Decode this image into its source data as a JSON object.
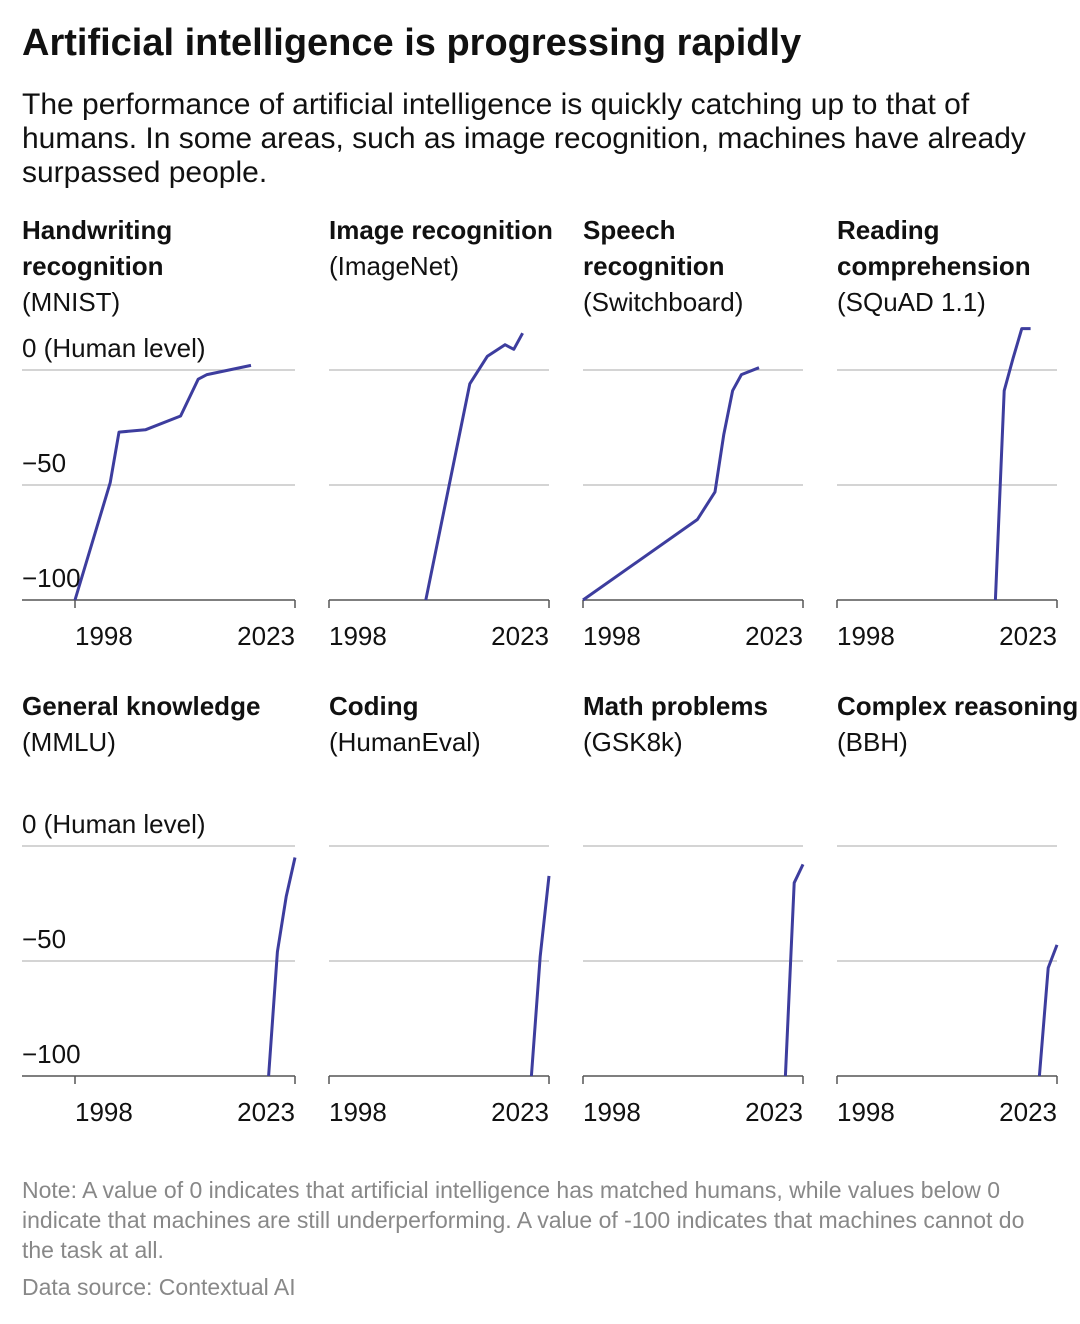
{
  "title": "Artificial intelligence is progressing rapidly",
  "subtitle": "The performance of artificial intelligence is quickly catching up to that of humans. In some areas, such as image recognition, machines have already surpassed people.",
  "note": "Note: A value of 0 indicates that artificial intelligence has matched humans, while values below 0 indicate that machines are still underperforming. A value of -100 indicates that machines cannot do the task at all.",
  "source": "Data source: Contextual AI",
  "chart_data": [
    {
      "type": "line",
      "title": "Handwriting recognition",
      "subtitle": "(MNIST)",
      "color": "#3d3d9e",
      "x": [
        1998,
        2002,
        2003,
        2006,
        2010,
        2012,
        2013,
        2018
      ],
      "values": [
        -100,
        -49,
        -27,
        -26,
        -20,
        -4,
        -2,
        2
      ],
      "xlim": [
        1998,
        2023
      ],
      "xticks": [
        1998,
        2023
      ],
      "ylim": [
        -100,
        20
      ],
      "yticks": [
        {
          "value": -100,
          "label": "−100"
        },
        {
          "value": -50,
          "label": "−50"
        },
        {
          "value": 0,
          "label": "0 (Human level)"
        }
      ]
    },
    {
      "type": "line",
      "title": "Image recognition",
      "subtitle": "(ImageNet)",
      "color": "#3d3d9e",
      "x": [
        2009,
        2014,
        2016,
        2018,
        2019,
        2020
      ],
      "values": [
        -100,
        -6,
        6,
        11,
        9,
        16
      ],
      "xlim": [
        1998,
        2023
      ],
      "xticks": [
        1998,
        2023
      ],
      "ylim": [
        -100,
        20
      ],
      "yticks": [
        -100,
        -50,
        0
      ]
    },
    {
      "type": "line",
      "title": "Speech recognition",
      "subtitle": "(Switchboard)",
      "color": "#3d3d9e",
      "x": [
        1998,
        2011,
        2013,
        2014,
        2015,
        2016,
        2018
      ],
      "values": [
        -100,
        -65,
        -53,
        -28,
        -9,
        -2,
        1
      ],
      "xlim": [
        1998,
        2023
      ],
      "xticks": [
        1998,
        2023
      ],
      "ylim": [
        -100,
        20
      ],
      "yticks": [
        -100,
        -50,
        0
      ]
    },
    {
      "type": "line",
      "title": "Reading comprehension",
      "subtitle": "(SQuAD 1.1)",
      "color": "#3d3d9e",
      "x": [
        2016,
        2017,
        2018,
        2019,
        2020
      ],
      "values": [
        -100,
        -9,
        5,
        18,
        18
      ],
      "xlim": [
        1998,
        2023
      ],
      "xticks": [
        1998,
        2023
      ],
      "ylim": [
        -100,
        20
      ],
      "yticks": [
        -100,
        -50,
        0
      ]
    },
    {
      "type": "line",
      "title": "General knowledge",
      "subtitle": "(MMLU)",
      "color": "#3d3d9e",
      "x": [
        2020,
        2021,
        2022,
        2023
      ],
      "values": [
        -100,
        -46,
        -22,
        -5
      ],
      "xlim": [
        1998,
        2023
      ],
      "xticks": [
        1998,
        2023
      ],
      "ylim": [
        -100,
        20
      ],
      "yticks": [
        {
          "value": -100,
          "label": "−100"
        },
        {
          "value": -50,
          "label": "−50"
        },
        {
          "value": 0,
          "label": "0 (Human level)"
        }
      ]
    },
    {
      "type": "line",
      "title": "Coding",
      "subtitle": "(HumanEval)",
      "color": "#3d3d9e",
      "x": [
        2021,
        2022,
        2023
      ],
      "values": [
        -100,
        -48,
        -13
      ],
      "xlim": [
        1998,
        2023
      ],
      "xticks": [
        1998,
        2023
      ],
      "ylim": [
        -100,
        20
      ],
      "yticks": [
        -100,
        -50,
        0
      ]
    },
    {
      "type": "line",
      "title": "Math problems",
      "subtitle": "(GSK8k)",
      "color": "#3d3d9e",
      "x": [
        2021,
        2022,
        2023
      ],
      "values": [
        -100,
        -16,
        -8
      ],
      "xlim": [
        1998,
        2023
      ],
      "xticks": [
        1998,
        2023
      ],
      "ylim": [
        -100,
        20
      ],
      "yticks": [
        -100,
        -50,
        0
      ]
    },
    {
      "type": "line",
      "title": "Complex reasoning",
      "subtitle": "(BBH)",
      "color": "#3d3d9e",
      "x": [
        2021,
        2022,
        2023
      ],
      "values": [
        -100,
        -53,
        -43
      ],
      "xlim": [
        1998,
        2023
      ],
      "xticks": [
        1998,
        2023
      ],
      "ylim": [
        -100,
        20
      ],
      "yticks": [
        -100,
        -50,
        0
      ]
    }
  ]
}
